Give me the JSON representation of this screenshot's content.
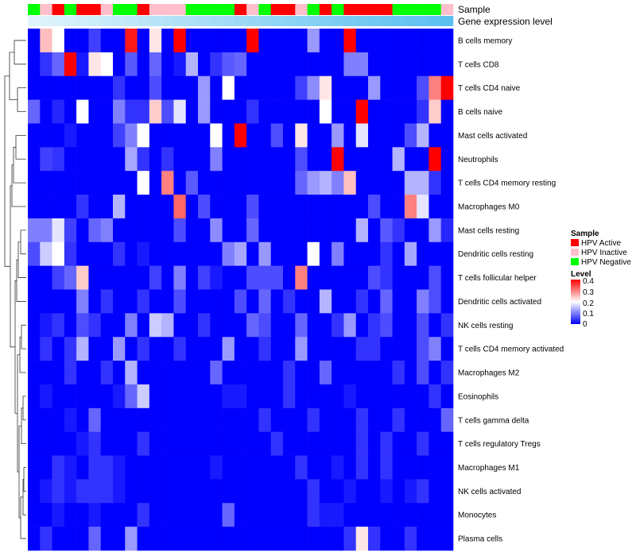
{
  "chart_data": {
    "type": "heatmap",
    "title": "",
    "annotation_tracks": [
      "Sample",
      "Gene expression level"
    ],
    "row_labels": [
      "B cells memory",
      "T cells CD8",
      "T cells CD4 naive",
      "B cells naive",
      "Mast cells activated",
      "Neutrophils",
      "T cells CD4 memory resting",
      "Macrophages M0",
      "Mast cells resting",
      "Dendritic cells resting",
      "T cells follicular helper",
      "Dendritic cells activated",
      "NK cells resting",
      "T cells CD4 memory activated",
      "Macrophages M2",
      "Eosinophils",
      "T cells gamma delta",
      "T cells regulatory  Tregs",
      "Macrophages M1",
      "NK cells activated",
      "Monocytes",
      "Plasma cells"
    ],
    "sample_groups": [
      "HPV Negative",
      "HPV Inactive",
      "HPV Active",
      "HPV Negative",
      "HPV Active",
      "HPV Active",
      "HPV Inactive",
      "HPV Negative",
      "HPV Negative",
      "HPV Active",
      "HPV Inactive",
      "HPV Inactive",
      "HPV Inactive",
      "HPV Negative",
      "HPV Negative",
      "HPV Negative",
      "HPV Negative",
      "HPV Active",
      "HPV Inactive",
      "HPV Negative",
      "HPV Active",
      "HPV Active",
      "HPV Inactive",
      "HPV Negative",
      "HPV Active",
      "HPV Negative",
      "HPV Active",
      "HPV Active",
      "HPV Active",
      "HPV Active",
      "HPV Negative",
      "HPV Negative",
      "HPV Negative",
      "HPV Negative",
      "HPV Inactive"
    ],
    "expression_level": [
      0.0,
      0.03,
      0.06,
      0.09,
      0.12,
      0.15,
      0.18,
      0.21,
      0.24,
      0.27,
      0.3,
      0.33,
      0.36,
      0.39,
      0.42,
      0.45,
      0.48,
      0.51,
      0.54,
      0.57,
      0.6,
      0.63,
      0.66,
      0.69,
      0.72,
      0.75,
      0.78,
      0.81,
      0.84,
      0.87,
      0.9,
      0.92,
      0.94,
      0.97,
      1.0
    ],
    "values": [
      [
        0.0,
        0.25,
        0.2,
        0.0,
        0.0,
        0.05,
        0.0,
        0.0,
        0.38,
        0.0,
        0.22,
        0.0,
        0.4,
        0.0,
        0.0,
        0.0,
        0.0,
        0.0,
        0.4,
        0.0,
        0.0,
        0.0,
        0.0,
        0.12,
        0.0,
        0.0,
        0.4,
        0.0,
        0.0,
        0.0,
        0.0,
        0.0,
        0.0,
        0.0,
        0.0
      ],
      [
        0.0,
        0.04,
        0.08,
        0.4,
        0.02,
        0.22,
        0.2,
        0.0,
        0.07,
        0.0,
        0.08,
        0.0,
        0.02,
        0.14,
        0.0,
        0.04,
        0.07,
        0.08,
        0.0,
        0.0,
        0.0,
        0.0,
        0.0,
        0.0,
        0.0,
        0.0,
        0.1,
        0.1,
        0.0,
        0.0,
        0.0,
        0.0,
        0.0,
        0.0,
        0.0
      ],
      [
        0.0,
        0.0,
        0.0,
        0.0,
        0.0,
        0.0,
        0.0,
        0.04,
        0.0,
        0.0,
        0.06,
        0.0,
        0.0,
        0.0,
        0.12,
        0.0,
        0.2,
        0.0,
        0.0,
        0.0,
        0.0,
        0.0,
        0.05,
        0.11,
        0.22,
        0.0,
        0.0,
        0.0,
        0.12,
        0.0,
        0.0,
        0.0,
        0.06,
        0.3,
        0.4
      ],
      [
        0.08,
        0.0,
        0.03,
        0.0,
        0.2,
        0.0,
        0.0,
        0.1,
        0.04,
        0.04,
        0.24,
        0.06,
        0.18,
        0.0,
        0.12,
        0.0,
        0.0,
        0.0,
        0.04,
        0.0,
        0.0,
        0.0,
        0.0,
        0.0,
        0.2,
        0.0,
        0.0,
        0.4,
        0.0,
        0.0,
        0.0,
        0.0,
        0.04,
        0.24,
        0.0
      ],
      [
        0.0,
        0.0,
        0.0,
        0.02,
        0.0,
        0.0,
        0.0,
        0.05,
        0.1,
        0.2,
        0.0,
        0.0,
        0.0,
        0.0,
        0.0,
        0.2,
        0.0,
        0.4,
        0.0,
        0.0,
        0.06,
        0.0,
        0.22,
        0.0,
        0.0,
        0.12,
        0.0,
        0.18,
        0.0,
        0.0,
        0.0,
        0.06,
        0.14,
        0.0,
        0.0
      ],
      [
        0.0,
        0.05,
        0.04,
        0.0,
        0.0,
        0.0,
        0.0,
        0.0,
        0.13,
        0.04,
        0.0,
        0.04,
        0.0,
        0.0,
        0.0,
        0.1,
        0.0,
        0.0,
        0.0,
        0.0,
        0.0,
        0.0,
        0.06,
        0.0,
        0.0,
        0.4,
        0.0,
        0.0,
        0.0,
        0.0,
        0.14,
        0.0,
        0.0,
        0.4,
        0.0
      ],
      [
        0.0,
        0.0,
        0.0,
        0.0,
        0.0,
        0.0,
        0.0,
        0.0,
        0.0,
        0.2,
        0.0,
        0.3,
        0.0,
        0.07,
        0.0,
        0.0,
        0.0,
        0.0,
        0.0,
        0.0,
        0.0,
        0.0,
        0.08,
        0.12,
        0.14,
        0.1,
        0.25,
        0.0,
        0.0,
        0.0,
        0.0,
        0.14,
        0.14,
        0.04,
        0.0
      ],
      [
        0.0,
        0.0,
        0.0,
        0.0,
        0.04,
        0.0,
        0.0,
        0.14,
        0.0,
        0.0,
        0.0,
        0.0,
        0.32,
        0.0,
        0.06,
        0.0,
        0.0,
        0.0,
        0.06,
        0.0,
        0.0,
        0.0,
        0.0,
        0.0,
        0.0,
        0.0,
        0.0,
        0.0,
        0.06,
        0.0,
        0.0,
        0.3,
        0.18,
        0.0,
        0.0
      ],
      [
        0.1,
        0.1,
        0.18,
        0.05,
        0.0,
        0.08,
        0.1,
        0.0,
        0.0,
        0.0,
        0.0,
        0.0,
        0.06,
        0.0,
        0.0,
        0.11,
        0.0,
        0.0,
        0.08,
        0.0,
        0.0,
        0.0,
        0.0,
        0.0,
        0.0,
        0.0,
        0.0,
        0.14,
        0.0,
        0.07,
        0.04,
        0.0,
        0.0,
        0.12,
        0.03
      ],
      [
        0.06,
        0.16,
        0.2,
        0.04,
        0.0,
        0.0,
        0.0,
        0.04,
        0.0,
        0.02,
        0.0,
        0.0,
        0.0,
        0.0,
        0.0,
        0.0,
        0.1,
        0.13,
        0.0,
        0.12,
        0.0,
        0.0,
        0.0,
        0.2,
        0.0,
        0.1,
        0.0,
        0.0,
        0.0,
        0.04,
        0.0,
        0.13,
        0.0,
        0.0,
        0.0
      ],
      [
        0.0,
        0.0,
        0.05,
        0.08,
        0.24,
        0.0,
        0.0,
        0.0,
        0.0,
        0.0,
        0.05,
        0.0,
        0.1,
        0.0,
        0.05,
        0.02,
        0.0,
        0.0,
        0.06,
        0.06,
        0.06,
        0.0,
        0.3,
        0.0,
        0.0,
        0.0,
        0.0,
        0.0,
        0.06,
        0.04,
        0.0,
        0.0,
        0.0,
        0.06,
        0.0
      ],
      [
        0.0,
        0.0,
        0.0,
        0.0,
        0.1,
        0.0,
        0.04,
        0.0,
        0.0,
        0.04,
        0.0,
        0.0,
        0.06,
        0.0,
        0.0,
        0.0,
        0.0,
        0.06,
        0.0,
        0.08,
        0.0,
        0.04,
        0.0,
        0.0,
        0.14,
        0.0,
        0.0,
        0.04,
        0.0,
        0.08,
        0.0,
        0.0,
        0.1,
        0.06,
        0.0
      ],
      [
        0.0,
        0.02,
        0.04,
        0.0,
        0.06,
        0.04,
        0.0,
        0.0,
        0.1,
        0.0,
        0.16,
        0.14,
        0.0,
        0.0,
        0.04,
        0.0,
        0.0,
        0.0,
        0.08,
        0.06,
        0.0,
        0.0,
        0.08,
        0.0,
        0.0,
        0.04,
        0.12,
        0.0,
        0.04,
        0.06,
        0.0,
        0.0,
        0.06,
        0.0,
        0.04
      ],
      [
        0.0,
        0.04,
        0.0,
        0.04,
        0.14,
        0.0,
        0.0,
        0.12,
        0.0,
        0.04,
        0.0,
        0.0,
        0.04,
        0.0,
        0.0,
        0.0,
        0.12,
        0.0,
        0.0,
        0.04,
        0.0,
        0.0,
        0.12,
        0.0,
        0.0,
        0.0,
        0.0,
        0.04,
        0.04,
        0.0,
        0.0,
        0.0,
        0.06,
        0.1,
        0.0
      ],
      [
        0.0,
        0.0,
        0.0,
        0.04,
        0.0,
        0.0,
        0.04,
        0.0,
        0.14,
        0.0,
        0.0,
        0.0,
        0.0,
        0.0,
        0.0,
        0.08,
        0.0,
        0.0,
        0.0,
        0.0,
        0.0,
        0.04,
        0.0,
        0.0,
        0.08,
        0.0,
        0.0,
        0.0,
        0.0,
        0.0,
        0.04,
        0.0,
        0.06,
        0.0,
        0.04
      ],
      [
        0.0,
        0.02,
        0.0,
        0.0,
        0.0,
        0.0,
        0.0,
        0.02,
        0.08,
        0.16,
        0.0,
        0.0,
        0.0,
        0.0,
        0.0,
        0.0,
        0.02,
        0.02,
        0.0,
        0.0,
        0.0,
        0.04,
        0.0,
        0.0,
        0.0,
        0.0,
        0.02,
        0.0,
        0.0,
        0.0,
        0.0,
        0.0,
        0.0,
        0.04,
        0.0
      ],
      [
        0.0,
        0.0,
        0.0,
        0.02,
        0.0,
        0.08,
        0.0,
        0.0,
        0.0,
        0.0,
        0.0,
        0.0,
        0.0,
        0.0,
        0.0,
        0.0,
        0.0,
        0.0,
        0.0,
        0.04,
        0.0,
        0.0,
        0.0,
        0.04,
        0.0,
        0.0,
        0.0,
        0.04,
        0.0,
        0.0,
        0.04,
        0.0,
        0.0,
        0.0,
        0.08
      ],
      [
        0.0,
        0.0,
        0.0,
        0.0,
        0.02,
        0.04,
        0.0,
        0.0,
        0.0,
        0.04,
        0.0,
        0.0,
        0.0,
        0.0,
        0.0,
        0.0,
        0.0,
        0.0,
        0.0,
        0.0,
        0.04,
        0.0,
        0.0,
        0.0,
        0.0,
        0.0,
        0.0,
        0.04,
        0.0,
        0.04,
        0.0,
        0.0,
        0.04,
        0.0,
        0.0
      ],
      [
        0.0,
        0.0,
        0.04,
        0.02,
        0.0,
        0.04,
        0.04,
        0.02,
        0.0,
        0.0,
        0.0,
        0.0,
        0.0,
        0.0,
        0.0,
        0.02,
        0.0,
        0.0,
        0.0,
        0.0,
        0.0,
        0.0,
        0.04,
        0.0,
        0.0,
        0.02,
        0.0,
        0.04,
        0.0,
        0.04,
        0.0,
        0.0,
        0.0,
        0.0,
        0.0
      ],
      [
        0.0,
        0.02,
        0.04,
        0.02,
        0.04,
        0.04,
        0.04,
        0.02,
        0.0,
        0.0,
        0.0,
        0.0,
        0.0,
        0.0,
        0.0,
        0.0,
        0.0,
        0.0,
        0.0,
        0.0,
        0.0,
        0.0,
        0.0,
        0.04,
        0.0,
        0.0,
        0.02,
        0.0,
        0.0,
        0.02,
        0.0,
        0.02,
        0.04,
        0.0,
        0.0
      ],
      [
        0.0,
        0.0,
        0.02,
        0.0,
        0.0,
        0.02,
        0.0,
        0.0,
        0.0,
        0.04,
        0.0,
        0.0,
        0.0,
        0.0,
        0.0,
        0.0,
        0.08,
        0.0,
        0.0,
        0.0,
        0.0,
        0.0,
        0.0,
        0.04,
        0.02,
        0.02,
        0.0,
        0.0,
        0.0,
        0.0,
        0.0,
        0.0,
        0.0,
        0.0,
        0.0
      ],
      [
        0.0,
        0.04,
        0.0,
        0.0,
        0.0,
        0.08,
        0.0,
        0.0,
        0.12,
        0.0,
        0.0,
        0.0,
        0.0,
        0.0,
        0.0,
        0.0,
        0.0,
        0.0,
        0.0,
        0.0,
        0.0,
        0.0,
        0.0,
        0.0,
        0.0,
        0.0,
        0.04,
        0.22,
        0.04,
        0.0,
        0.0,
        0.04,
        0.0,
        0.0,
        0.0
      ]
    ],
    "value_range": [
      0,
      0.4
    ],
    "colors": {
      "low": "#0000ff",
      "mid": "#ffffff",
      "high": "#ff0000",
      "HPV Active": "#ff0000",
      "HPV Inactive": "#ffc0cb",
      "HPV Negative": "#00ff00",
      "expression_low": "#e0f4fb",
      "expression_high": "#5cc0f0"
    },
    "legend": {
      "sample_title": "Sample",
      "sample_items": [
        "HPV Active",
        "HPV Inactive",
        "HPV Negative"
      ],
      "level_title": "Level",
      "level_ticks": [
        "0.4",
        "0.3",
        "0.2",
        "0.1",
        "0"
      ],
      "placement": "right"
    }
  }
}
